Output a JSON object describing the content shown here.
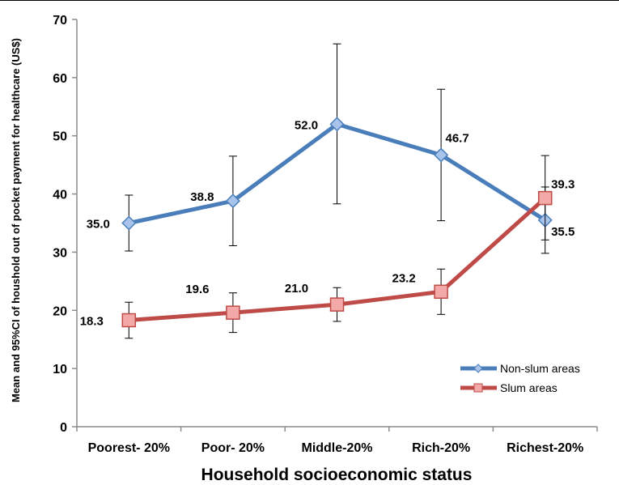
{
  "chart_data": {
    "type": "line",
    "xlabel": "Household socioeconomic status",
    "ylabel": "Mean and 95%CI of houshold out of pocket payment for healthcare (US$)",
    "ylim": [
      0,
      70
    ],
    "yticks": [
      "0",
      "10",
      "20",
      "30",
      "40",
      "50",
      "60",
      "70"
    ],
    "categories": [
      "Poorest- 20%",
      "Poor- 20%",
      "Middle-20%",
      "Rich-20%",
      "Richest-20%"
    ],
    "grid": false,
    "legend_position": "bottom-right",
    "series": [
      {
        "name": "Non-slum areas",
        "color": "#4a7ebb",
        "marker_fill": "#a9c4eb",
        "marker": "diamond",
        "values": [
          35.0,
          38.8,
          52.0,
          46.7,
          35.5
        ],
        "labels": [
          "35.0",
          "38.8",
          "52.0",
          "46.7",
          "35.5"
        ],
        "ci_low": [
          30.2,
          31.1,
          38.3,
          35.4,
          29.8
        ],
        "ci_high": [
          39.8,
          46.5,
          65.8,
          58.0,
          41.2
        ]
      },
      {
        "name": "Slum areas",
        "color": "#be4b48",
        "marker_fill": "#f3a9a7",
        "marker": "square",
        "values": [
          18.3,
          19.6,
          21.0,
          23.2,
          39.3
        ],
        "labels": [
          "18.3",
          "19.6",
          "21.0",
          "23.2",
          "39.3"
        ],
        "ci_low": [
          15.2,
          16.2,
          18.1,
          19.3,
          32.1
        ],
        "ci_high": [
          21.4,
          23.0,
          23.9,
          27.1,
          46.6
        ]
      }
    ]
  }
}
